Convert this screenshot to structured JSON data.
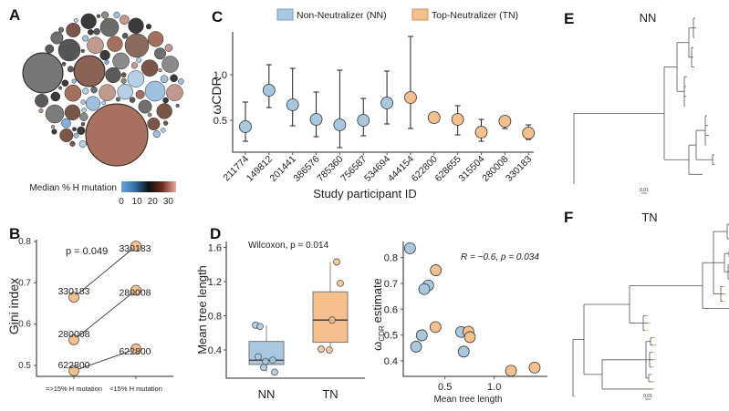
{
  "panel_labels": {
    "a": "A",
    "b": "B",
    "c": "C",
    "d": "D",
    "e": "E",
    "f": "F"
  },
  "colors": {
    "nn": "#a9c8e0",
    "tn": "#f6c08e",
    "stroke": "#333333",
    "gradient": [
      "#6aa6dc",
      "#2f6fa8",
      "#111111",
      "#6e2b1c",
      "#e8aaa2"
    ]
  },
  "chart_data": [
    {
      "panel": "A",
      "type": "bubble",
      "legend_title": "Median % H mutation",
      "legend_ticks": [
        "0",
        "10",
        "20",
        "30"
      ],
      "legend_range": [
        0,
        35
      ]
    },
    {
      "panel": "B",
      "type": "line",
      "ylabel": "Gini index",
      "xlabel": "",
      "categories": [
        "=>15% H mutation",
        "<15% H mutation"
      ],
      "ylim": [
        0.48,
        0.8
      ],
      "yticks": [
        "0.5",
        "0.6",
        "0.7",
        "0.8"
      ],
      "annotation": "p = 0.049",
      "series": [
        {
          "name": "330183",
          "values": [
            0.665,
            0.789
          ]
        },
        {
          "name": "280008",
          "values": [
            0.562,
            0.682
          ]
        },
        {
          "name": "622800",
          "values": [
            0.487,
            0.54
          ]
        }
      ]
    },
    {
      "panel": "C",
      "type": "scatter",
      "ylabel": "ωCDR",
      "xlabel": "Study participant ID",
      "ylim": [
        0.15,
        1.47
      ],
      "yticks": [
        "0.5",
        "1.0"
      ],
      "legend": [
        {
          "label": "Non-Neutralizer (NN)",
          "group": "nn"
        },
        {
          "label": "Top-Neutralizer (TN)",
          "group": "tn"
        }
      ],
      "points": [
        {
          "id": "211774",
          "group": "nn",
          "value": 0.43,
          "low": 0.27,
          "high": 0.7
        },
        {
          "id": "149812",
          "group": "nn",
          "value": 0.83,
          "low": 0.64,
          "high": 1.11
        },
        {
          "id": "201441",
          "group": "nn",
          "value": 0.67,
          "low": 0.44,
          "high": 1.07
        },
        {
          "id": "386576",
          "group": "nn",
          "value": 0.51,
          "low": 0.32,
          "high": 0.81
        },
        {
          "id": "785360",
          "group": "nn",
          "value": 0.45,
          "low": 0.2,
          "high": 1.05
        },
        {
          "id": "756587",
          "group": "nn",
          "value": 0.5,
          "low": 0.33,
          "high": 0.74
        },
        {
          "id": "534694",
          "group": "nn",
          "value": 0.69,
          "low": 0.46,
          "high": 1.04
        },
        {
          "id": "444154",
          "group": "tn",
          "value": 0.75,
          "low": 0.41,
          "high": 1.42
        },
        {
          "id": "622800",
          "group": "tn",
          "value": 0.53,
          "low": 0.47,
          "high": 0.59
        },
        {
          "id": "628655",
          "group": "tn",
          "value": 0.51,
          "low": 0.34,
          "high": 0.66
        },
        {
          "id": "315504",
          "group": "tn",
          "value": 0.37,
          "low": 0.27,
          "high": 0.51
        },
        {
          "id": "280008",
          "group": "tn",
          "value": 0.49,
          "low": 0.41,
          "high": 0.53
        },
        {
          "id": "330183",
          "group": "tn",
          "value": 0.36,
          "low": 0.29,
          "high": 0.45
        }
      ]
    },
    {
      "panel": "D-left",
      "type": "box",
      "ylabel": "Mean tree length",
      "annotation": "Wilcoxon, p = 0.014",
      "ylim": [
        0.1,
        1.65
      ],
      "yticks": [
        "0.4",
        "0.8",
        "1.2",
        "1.6"
      ],
      "groups": [
        {
          "label": "NN",
          "group": "nn",
          "q1": 0.23,
          "median": 0.28,
          "q3": 0.5,
          "whisker_low": 0.14,
          "whisker_high": 0.69,
          "points": [
            0.69,
            0.675,
            0.32,
            0.265,
            0.195,
            0.14,
            0.28
          ]
        },
        {
          "label": "TN",
          "group": "tn",
          "q1": 0.49,
          "median": 0.75,
          "q3": 1.08,
          "whisker_low": 0.4,
          "whisker_high": 1.43,
          "points": [
            1.43,
            1.18,
            0.75,
            0.41,
            0.4
          ]
        }
      ]
    },
    {
      "panel": "D-right",
      "type": "scatter",
      "ylabel_main": "ω",
      "ylabel_sub": "CDR",
      "ylabel_rest": "estimate",
      "xlabel": "Mean tree length",
      "annotation": "R = −0.6, p = 0.034",
      "xlim": [
        0.08,
        1.5
      ],
      "ylim": [
        0.34,
        0.85
      ],
      "xticks": [
        "0.5",
        "1.0"
      ],
      "yticks": [
        "0.4",
        "0.5",
        "0.6",
        "0.7",
        "0.8"
      ],
      "points": [
        {
          "x": 0.145,
          "y": 0.836,
          "group": "nn"
        },
        {
          "x": 0.33,
          "y": 0.692,
          "group": "nn"
        },
        {
          "x": 0.29,
          "y": 0.678,
          "group": "nn"
        },
        {
          "x": 0.265,
          "y": 0.499,
          "group": "nn"
        },
        {
          "x": 0.207,
          "y": 0.455,
          "group": "nn"
        },
        {
          "x": 0.664,
          "y": 0.512,
          "group": "nn"
        },
        {
          "x": 0.69,
          "y": 0.436,
          "group": "nn"
        },
        {
          "x": 0.407,
          "y": 0.751,
          "group": "tn"
        },
        {
          "x": 0.404,
          "y": 0.531,
          "group": "tn"
        },
        {
          "x": 0.738,
          "y": 0.513,
          "group": "tn"
        },
        {
          "x": 0.753,
          "y": 0.492,
          "group": "tn"
        },
        {
          "x": 1.17,
          "y": 0.362,
          "group": "tn"
        },
        {
          "x": 1.41,
          "y": 0.374,
          "group": "tn"
        }
      ]
    },
    {
      "panel": "E",
      "type": "tree",
      "title": "NN",
      "scale_label": "0.01"
    },
    {
      "panel": "F",
      "type": "tree",
      "title": "TN",
      "scale_label": "0.01"
    }
  ]
}
